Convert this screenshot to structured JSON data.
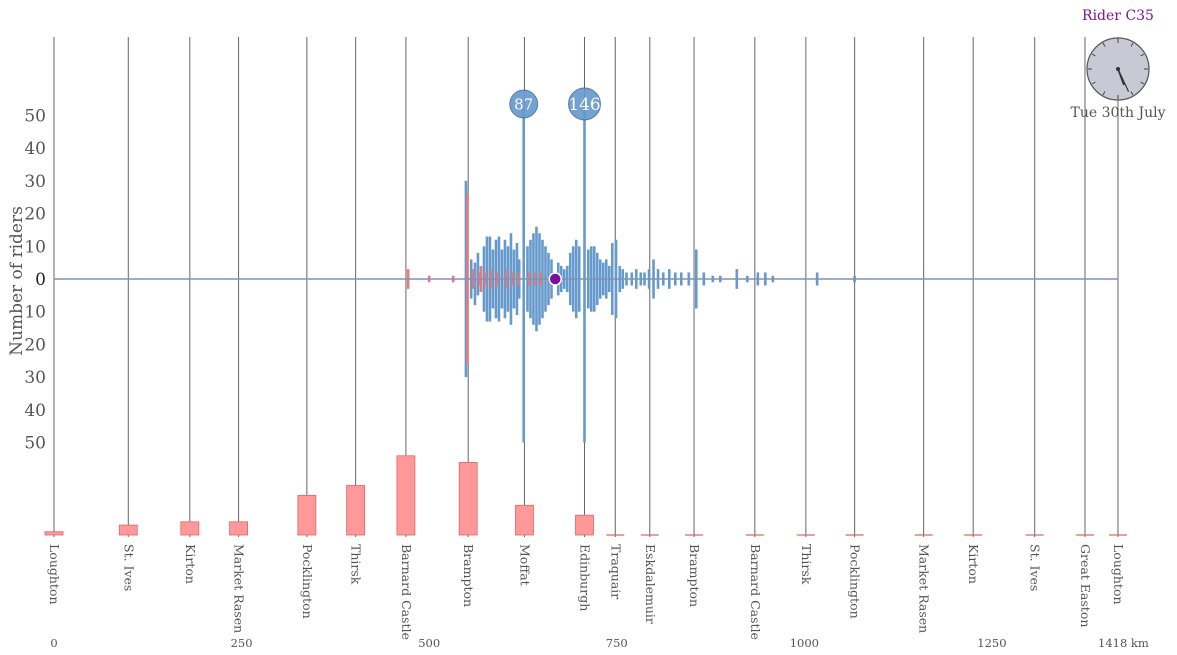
{
  "rider_label": "Rider C35",
  "clock": {
    "date_label": "Tue 30th July",
    "hour_hand_angle_deg": 160,
    "minute_hand_angle_deg": 155,
    "face_color": "#c8c9d4"
  },
  "colors": {
    "blue": "#6699cc",
    "red": "#e97a7a",
    "bar_fill": "#ff9999",
    "bar_stroke": "#e06666",
    "control_line": "#666666",
    "axis_line": "#7f93b3",
    "rider_marker": "#7a0fa0",
    "rider_label": "#7a1496",
    "text": "#555555"
  },
  "chart_data": {
    "type": "bar",
    "title": "",
    "ylabel": "Number of riders",
    "y_ticks_upper": [
      50,
      40,
      30,
      20,
      10
    ],
    "y_tick_zero": "0",
    "y_ticks_lower": [
      10,
      20,
      30,
      40,
      50
    ],
    "ylim": [
      -50,
      50
    ],
    "x_ticks": [
      {
        "km": 0,
        "label": "0"
      },
      {
        "km": 250,
        "label": "250"
      },
      {
        "km": 500,
        "label": "500"
      },
      {
        "km": 750,
        "label": "750"
      },
      {
        "km": 1000,
        "label": "1000"
      },
      {
        "km": 1250,
        "label": "1250"
      },
      {
        "km": 1418,
        "label": "1418 km"
      }
    ],
    "xlim": [
      0,
      1418
    ],
    "controls": [
      {
        "name": "Loughton",
        "km": 0,
        "bar": 1
      },
      {
        "name": "St. Ives",
        "km": 99,
        "bar": 3
      },
      {
        "name": "Kirton",
        "km": 181,
        "bar": 4
      },
      {
        "name": "Market Rasen",
        "km": 246,
        "bar": 4
      },
      {
        "name": "Pocklington",
        "km": 337,
        "bar": 12
      },
      {
        "name": "Thirsk",
        "km": 402,
        "bar": 15
      },
      {
        "name": "Barnard Castle",
        "km": 469,
        "bar": 24
      },
      {
        "name": "Brampton",
        "km": 552,
        "bar": 22
      },
      {
        "name": "Moffat",
        "km": 627,
        "bar": 9
      },
      {
        "name": "Edinburgh",
        "km": 707,
        "bar": 6
      },
      {
        "name": "Traquair",
        "km": 748,
        "bar": 0
      },
      {
        "name": "Eskdalemuir",
        "km": 794,
        "bar": 0
      },
      {
        "name": "Brampton",
        "km": 853,
        "bar": 0
      },
      {
        "name": "Barnard Castle",
        "km": 934,
        "bar": 0
      },
      {
        "name": "Thirsk",
        "km": 1002,
        "bar": 0
      },
      {
        "name": "Pocklington",
        "km": 1067,
        "bar": 0
      },
      {
        "name": "Market Rasen",
        "km": 1159,
        "bar": 0
      },
      {
        "name": "Kirton",
        "km": 1225,
        "bar": 0
      },
      {
        "name": "St. Ives",
        "km": 1307,
        "bar": 0
      },
      {
        "name": "Great Easton",
        "km": 1374,
        "bar": 0
      },
      {
        "name": "Loughton",
        "km": 1418,
        "bar": 0
      }
    ],
    "bubbles": [
      {
        "km": 626,
        "value": 87,
        "label": "87"
      },
      {
        "km": 707,
        "value": 146,
        "label": "146"
      }
    ],
    "rider_position_km": 668,
    "distribution": [
      {
        "km": 472,
        "up": 3,
        "down": 3,
        "series": "red"
      },
      {
        "km": 500,
        "up": 1,
        "down": 1,
        "series": "red"
      },
      {
        "km": 532,
        "up": 1,
        "down": 1,
        "series": "red"
      },
      {
        "km": 549,
        "up": 30,
        "down": 30,
        "series": "blue"
      },
      {
        "km": 551,
        "up": 26,
        "down": 26,
        "series": "red"
      },
      {
        "km": 556,
        "up": 6,
        "down": 6,
        "series": "blue"
      },
      {
        "km": 561,
        "up": 5,
        "down": 8,
        "series": "blue"
      },
      {
        "km": 565,
        "up": 8,
        "down": 5,
        "series": "blue"
      },
      {
        "km": 569,
        "up": 4,
        "down": 4,
        "series": "red"
      },
      {
        "km": 573,
        "up": 10,
        "down": 10,
        "series": "blue"
      },
      {
        "km": 577,
        "up": 13,
        "down": 13,
        "series": "blue"
      },
      {
        "km": 581,
        "up": 13,
        "down": 13,
        "series": "blue"
      },
      {
        "km": 585,
        "up": 9,
        "down": 9,
        "series": "blue"
      },
      {
        "km": 589,
        "up": 12,
        "down": 12,
        "series": "blue"
      },
      {
        "km": 593,
        "up": 13,
        "down": 13,
        "series": "blue"
      },
      {
        "km": 597,
        "up": 9,
        "down": 9,
        "series": "blue"
      },
      {
        "km": 601,
        "up": 12,
        "down": 12,
        "series": "blue"
      },
      {
        "km": 605,
        "up": 10,
        "down": 10,
        "series": "blue"
      },
      {
        "km": 609,
        "up": 14,
        "down": 14,
        "series": "blue"
      },
      {
        "km": 613,
        "up": 9,
        "down": 9,
        "series": "blue"
      },
      {
        "km": 617,
        "up": 11,
        "down": 11,
        "series": "blue"
      },
      {
        "km": 620,
        "up": 6,
        "down": 6,
        "series": "blue"
      },
      {
        "km": 626,
        "up": 87,
        "down": 50,
        "series": "blue"
      },
      {
        "km": 631,
        "up": 10,
        "down": 10,
        "series": "blue"
      },
      {
        "km": 635,
        "up": 12,
        "down": 12,
        "series": "blue"
      },
      {
        "km": 639,
        "up": 14,
        "down": 14,
        "series": "blue"
      },
      {
        "km": 643,
        "up": 16,
        "down": 16,
        "series": "blue"
      },
      {
        "km": 647,
        "up": 14,
        "down": 14,
        "series": "blue"
      },
      {
        "km": 651,
        "up": 12,
        "down": 12,
        "series": "blue"
      },
      {
        "km": 655,
        "up": 10,
        "down": 10,
        "series": "blue"
      },
      {
        "km": 659,
        "up": 8,
        "down": 8,
        "series": "blue"
      },
      {
        "km": 663,
        "up": 6,
        "down": 6,
        "series": "blue"
      },
      {
        "km": 672,
        "up": 5,
        "down": 5,
        "series": "blue"
      },
      {
        "km": 676,
        "up": 4,
        "down": 4,
        "series": "blue"
      },
      {
        "km": 680,
        "up": 3,
        "down": 3,
        "series": "blue"
      },
      {
        "km": 684,
        "up": 4,
        "down": 4,
        "series": "blue"
      },
      {
        "km": 688,
        "up": 8,
        "down": 8,
        "series": "blue"
      },
      {
        "km": 692,
        "up": 10,
        "down": 10,
        "series": "blue"
      },
      {
        "km": 696,
        "up": 12,
        "down": 12,
        "series": "blue"
      },
      {
        "km": 700,
        "up": 10,
        "down": 10,
        "series": "blue"
      },
      {
        "km": 707,
        "up": 146,
        "down": 50,
        "series": "blue"
      },
      {
        "km": 712,
        "up": 9,
        "down": 9,
        "series": "blue"
      },
      {
        "km": 716,
        "up": 10,
        "down": 10,
        "series": "blue"
      },
      {
        "km": 720,
        "up": 10,
        "down": 10,
        "series": "blue"
      },
      {
        "km": 724,
        "up": 8,
        "down": 8,
        "series": "blue"
      },
      {
        "km": 728,
        "up": 6,
        "down": 6,
        "series": "blue"
      },
      {
        "km": 732,
        "up": 5,
        "down": 5,
        "series": "blue"
      },
      {
        "km": 736,
        "up": 6,
        "down": 6,
        "series": "blue"
      },
      {
        "km": 740,
        "up": 4,
        "down": 4,
        "series": "blue"
      },
      {
        "km": 744,
        "up": 11,
        "down": 11,
        "series": "blue"
      },
      {
        "km": 749,
        "up": 12,
        "down": 12,
        "series": "blue"
      },
      {
        "km": 754,
        "up": 4,
        "down": 4,
        "series": "blue"
      },
      {
        "km": 758,
        "up": 3,
        "down": 3,
        "series": "blue"
      },
      {
        "km": 763,
        "up": 2,
        "down": 2,
        "series": "blue"
      },
      {
        "km": 770,
        "up": 2,
        "down": 2,
        "series": "blue"
      },
      {
        "km": 776,
        "up": 3,
        "down": 3,
        "series": "blue"
      },
      {
        "km": 782,
        "up": 2,
        "down": 2,
        "series": "blue"
      },
      {
        "km": 787,
        "up": 2,
        "down": 2,
        "series": "blue"
      },
      {
        "km": 793,
        "up": 3,
        "down": 3,
        "series": "blue"
      },
      {
        "km": 799,
        "up": 6,
        "down": 6,
        "series": "blue"
      },
      {
        "km": 805,
        "up": 3,
        "down": 3,
        "series": "blue"
      },
      {
        "km": 812,
        "up": 2,
        "down": 2,
        "series": "blue"
      },
      {
        "km": 820,
        "up": 3,
        "down": 3,
        "series": "blue"
      },
      {
        "km": 828,
        "up": 2,
        "down": 2,
        "series": "blue"
      },
      {
        "km": 836,
        "up": 2,
        "down": 2,
        "series": "blue"
      },
      {
        "km": 846,
        "up": 2,
        "down": 2,
        "series": "blue"
      },
      {
        "km": 856,
        "up": 9,
        "down": 9,
        "series": "blue"
      },
      {
        "km": 866,
        "up": 2,
        "down": 2,
        "series": "blue"
      },
      {
        "km": 878,
        "up": 1,
        "down": 1,
        "series": "blue"
      },
      {
        "km": 888,
        "up": 1,
        "down": 1,
        "series": "blue"
      },
      {
        "km": 910,
        "up": 3,
        "down": 3,
        "series": "blue"
      },
      {
        "km": 924,
        "up": 1,
        "down": 1,
        "series": "blue"
      },
      {
        "km": 938,
        "up": 2,
        "down": 2,
        "series": "blue"
      },
      {
        "km": 948,
        "up": 2,
        "down": 2,
        "series": "blue"
      },
      {
        "km": 958,
        "up": 1,
        "down": 1,
        "series": "blue"
      },
      {
        "km": 1017,
        "up": 2,
        "down": 2,
        "series": "blue"
      },
      {
        "km": 1067,
        "up": 1,
        "down": 1,
        "series": "blue"
      }
    ],
    "distribution_red_overlay": [
      {
        "km": 559,
        "up": 3,
        "down": 3
      },
      {
        "km": 567,
        "up": 2,
        "down": 2
      },
      {
        "km": 575,
        "up": 2,
        "down": 2
      },
      {
        "km": 583,
        "up": 3,
        "down": 3
      },
      {
        "km": 591,
        "up": 2,
        "down": 2
      },
      {
        "km": 603,
        "up": 3,
        "down": 3
      },
      {
        "km": 611,
        "up": 2,
        "down": 2
      },
      {
        "km": 619,
        "up": 2,
        "down": 2
      },
      {
        "km": 633,
        "up": 2,
        "down": 2
      },
      {
        "km": 641,
        "up": 2,
        "down": 2
      },
      {
        "km": 649,
        "up": 2,
        "down": 2
      }
    ]
  }
}
